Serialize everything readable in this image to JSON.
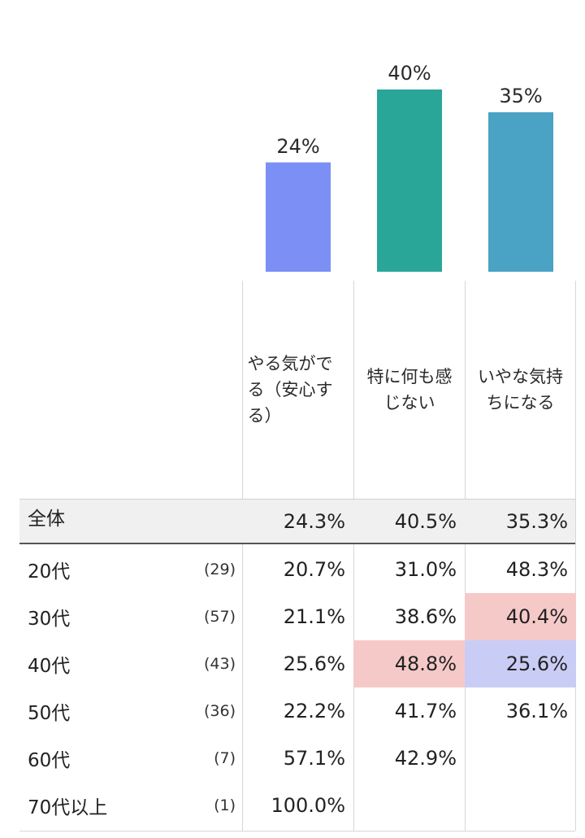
{
  "chart_data": {
    "type": "bar",
    "categories": [
      "やる気がでる（安心する）",
      "特に何も感じない",
      "いやな気持ちになる"
    ],
    "values": [
      24,
      40,
      35
    ],
    "value_labels": [
      "24%",
      "40%",
      "35%"
    ],
    "colors": [
      "#7b8ff5",
      "#2aa698",
      "#4aa2c4"
    ],
    "ylim": [
      0,
      40
    ],
    "title": "",
    "xlabel": "",
    "ylabel": ""
  },
  "table": {
    "columns": [
      "やる気がでる（安心する）",
      "特に何も感じない",
      "いやな気持ちになる"
    ],
    "total": {
      "label": "全体",
      "n": "",
      "values": [
        "24.3%",
        "40.5%",
        "35.3%"
      ]
    },
    "rows": [
      {
        "label": "20代",
        "n": "(29)",
        "values": [
          "20.7%",
          "31.0%",
          "48.3%"
        ],
        "highlights": [
          "",
          "",
          ""
        ]
      },
      {
        "label": "30代",
        "n": "(57)",
        "values": [
          "21.1%",
          "38.6%",
          "40.4%"
        ],
        "highlights": [
          "",
          "",
          "red"
        ]
      },
      {
        "label": "40代",
        "n": "(43)",
        "values": [
          "25.6%",
          "48.8%",
          "25.6%"
        ],
        "highlights": [
          "",
          "red",
          "blue"
        ]
      },
      {
        "label": "50代",
        "n": "(36)",
        "values": [
          "22.2%",
          "41.7%",
          "36.1%"
        ],
        "highlights": [
          "",
          "",
          ""
        ]
      },
      {
        "label": "60代",
        "n": "(7)",
        "values": [
          "57.1%",
          "42.9%",
          ""
        ],
        "highlights": [
          "",
          "",
          ""
        ]
      },
      {
        "label": "70代以上",
        "n": "(1)",
        "values": [
          "100.0%",
          "",
          ""
        ],
        "highlights": [
          "",
          "",
          ""
        ]
      }
    ],
    "highlight_colors": {
      "red": "#f6c9c9",
      "blue": "#c9cdf6"
    }
  }
}
